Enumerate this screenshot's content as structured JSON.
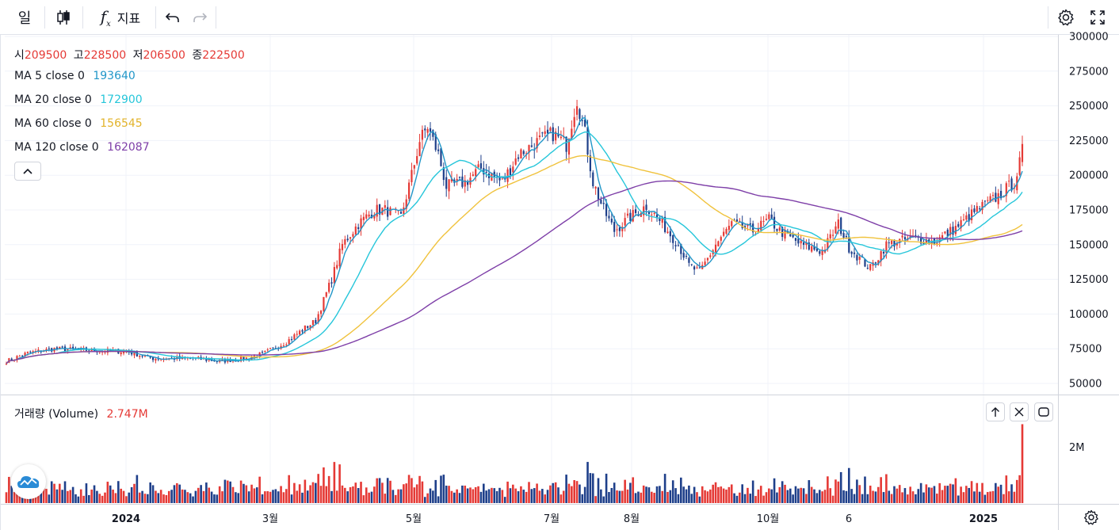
{
  "toolbar": {
    "interval": "일",
    "indicators_label": "지표"
  },
  "ohlc": {
    "open_label": "시",
    "open": "209500",
    "high_label": "고",
    "high": "228500",
    "low_label": "저",
    "low": "206500",
    "close_label": "종",
    "close": "222500"
  },
  "ma": [
    {
      "label": "MA 5 close 0",
      "value": "193640",
      "color": "#2196c8"
    },
    {
      "label": "MA 20 close 0",
      "value": "172900",
      "color": "#26c6da"
    },
    {
      "label": "MA 60 close 0",
      "value": "156545",
      "color": "#f0c23c"
    },
    {
      "label": "MA 120 close 0",
      "value": "162087",
      "color": "#7e3fa8"
    }
  ],
  "volume": {
    "label": "거래량 (Volume)",
    "value": "2.747M",
    "axis_label": "2M"
  },
  "colors": {
    "up": "#e53935",
    "down": "#1e3f8a"
  },
  "chart_data": {
    "type": "candlestick",
    "y_ticks": [
      "300000",
      "275000",
      "250000",
      "225000",
      "200000",
      "175000",
      "150000",
      "125000",
      "100000",
      "75000",
      "50000"
    ],
    "ylim": [
      45000,
      305000
    ],
    "x_ticks": [
      "2024",
      "3월",
      "5월",
      "7월",
      "8월",
      "10월",
      "6",
      "2025"
    ],
    "series": [
      {
        "name": "price",
        "waypoints": [
          [
            0,
            66000
          ],
          [
            8,
            72000
          ],
          [
            18,
            75000
          ],
          [
            30,
            74000
          ],
          [
            45,
            73000
          ],
          [
            55,
            68000
          ],
          [
            70,
            68000
          ],
          [
            80,
            66000
          ],
          [
            90,
            68000
          ],
          [
            97,
            72000
          ],
          [
            105,
            80000
          ],
          [
            112,
            90000
          ],
          [
            116,
            95000
          ],
          [
            122,
            125000
          ],
          [
            126,
            150000
          ],
          [
            132,
            165000
          ],
          [
            138,
            175000
          ],
          [
            142,
            175000
          ],
          [
            148,
            170000
          ],
          [
            152,
            200000
          ],
          [
            155,
            225000
          ],
          [
            158,
            235000
          ],
          [
            162,
            215000
          ],
          [
            165,
            192000
          ],
          [
            172,
            195000
          ],
          [
            178,
            205000
          ],
          [
            186,
            195000
          ],
          [
            192,
            215000
          ],
          [
            200,
            225000
          ],
          [
            205,
            230000
          ],
          [
            210,
            222000
          ],
          [
            214,
            255000
          ],
          [
            217,
            230000
          ],
          [
            220,
            195000
          ],
          [
            224,
            175000
          ],
          [
            228,
            160000
          ],
          [
            234,
            170000
          ],
          [
            240,
            178000
          ],
          [
            246,
            165000
          ],
          [
            252,
            150000
          ],
          [
            256,
            135000
          ],
          [
            260,
            130000
          ],
          [
            266,
            150000
          ],
          [
            272,
            165000
          ],
          [
            280,
            160000
          ],
          [
            286,
            168000
          ],
          [
            290,
            160000
          ],
          [
            298,
            150000
          ],
          [
            306,
            145000
          ],
          [
            312,
            165000
          ],
          [
            316,
            148000
          ],
          [
            320,
            140000
          ],
          [
            324,
            133000
          ],
          [
            330,
            150000
          ],
          [
            340,
            155000
          ],
          [
            348,
            152000
          ],
          [
            356,
            162000
          ],
          [
            364,
            175000
          ],
          [
            372,
            185000
          ],
          [
            378,
            195000
          ],
          [
            381,
            215000
          ]
        ]
      },
      {
        "name": "MA 5",
        "value": 193640
      },
      {
        "name": "MA 20",
        "value": 172900
      },
      {
        "name": "MA 60",
        "value": 156545
      },
      {
        "name": "MA 120",
        "value": 162087
      },
      {
        "name": "volume",
        "last": 2747000
      }
    ]
  }
}
